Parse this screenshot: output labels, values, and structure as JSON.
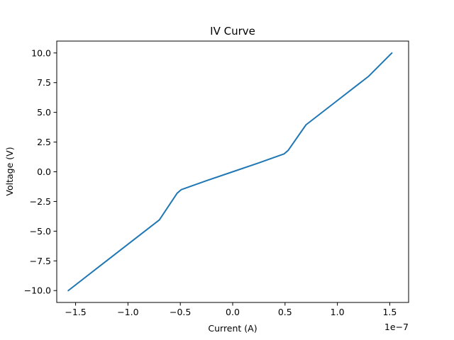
{
  "chart_data": {
    "type": "line",
    "title": "IV Curve",
    "xlabel": "Current (A)",
    "ylabel": "Voltage (V)",
    "x_offset_label": "1e−7",
    "xlim": [
      -1.68e-07,
      1.68e-07
    ],
    "ylim": [
      -11.0,
      11.0
    ],
    "xticks": [
      {
        "value": -1.5e-07,
        "label": "−1.5"
      },
      {
        "value": -1e-07,
        "label": "−1.0"
      },
      {
        "value": -5e-08,
        "label": "−0.5"
      },
      {
        "value": 0.0,
        "label": "0.0"
      },
      {
        "value": 5e-08,
        "label": "0.5"
      },
      {
        "value": 1e-07,
        "label": "1.0"
      },
      {
        "value": 1.5e-07,
        "label": "1.5"
      }
    ],
    "yticks": [
      {
        "value": -10.0,
        "label": "−10.0"
      },
      {
        "value": -7.5,
        "label": "−7.5"
      },
      {
        "value": -5.0,
        "label": "−5.0"
      },
      {
        "value": -2.5,
        "label": "−2.5"
      },
      {
        "value": 0.0,
        "label": "0.0"
      },
      {
        "value": 2.5,
        "label": "2.5"
      },
      {
        "value": 5.0,
        "label": "5.0"
      },
      {
        "value": 7.5,
        "label": "7.5"
      },
      {
        "value": 10.0,
        "label": "10.0"
      }
    ],
    "grid": false,
    "series": [
      {
        "color": "#1f77b4",
        "x": [
          -1.57e-07,
          -1.3e-07,
          -1e-07,
          -7e-08,
          -5.3e-08,
          -4.9e-08,
          -2.5e-08,
          0.0,
          2.5e-08,
          4.9e-08,
          5.3e-08,
          7e-08,
          1e-07,
          1.3e-07,
          1.52e-07
        ],
        "y": [
          -10.0,
          -8.15,
          -6.1,
          -4.05,
          -1.8,
          -1.5,
          -0.75,
          0.0,
          0.75,
          1.5,
          1.8,
          3.95,
          6.0,
          8.05,
          10.0
        ]
      }
    ]
  }
}
